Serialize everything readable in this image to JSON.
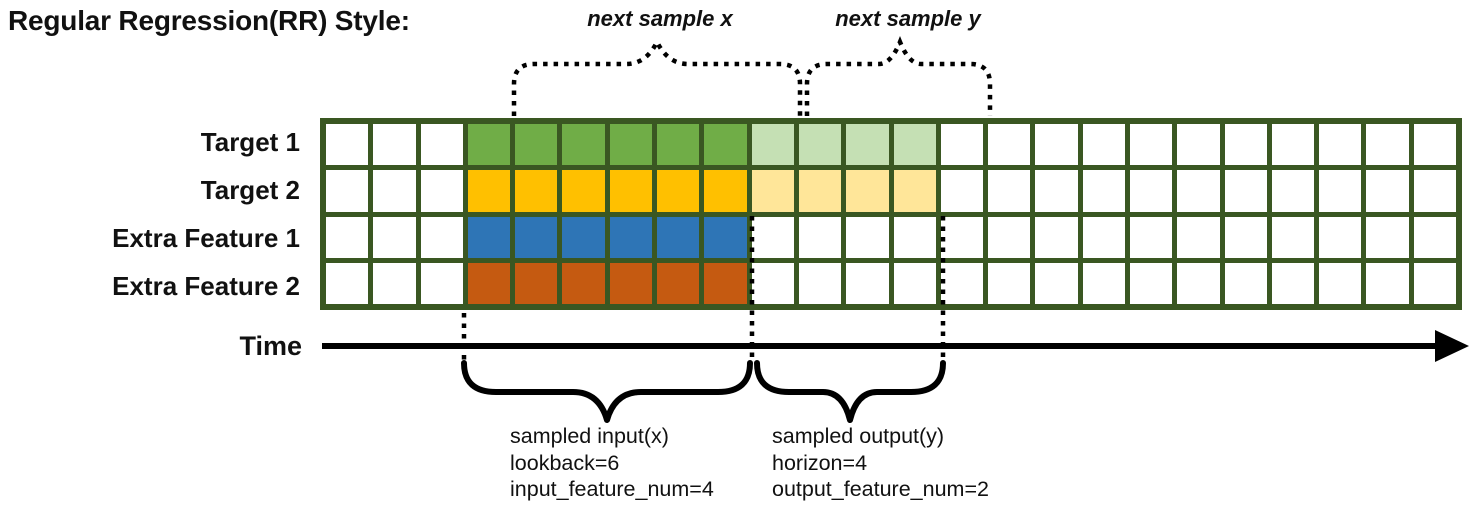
{
  "title": "Regular Regression(RR) Style:",
  "top_annotations": {
    "next_sample_x": "next sample x",
    "next_sample_y": "next sample y"
  },
  "grid": {
    "columns": 24,
    "sample_start_column": 4,
    "lookback": 6,
    "horizon": 4,
    "rows": [
      {
        "label": "Target 1",
        "lookback_color": "#70AD47",
        "horizon_color": "#C5E0B4"
      },
      {
        "label": "Target 2",
        "lookback_color": "#FFC000",
        "horizon_color": "#FFE699"
      },
      {
        "label": "Extra Feature 1",
        "lookback_color": "#2E75B6",
        "horizon_color": null
      },
      {
        "label": "Extra Feature 2",
        "lookback_color": "#C55A11",
        "horizon_color": null
      }
    ]
  },
  "time_axis": {
    "label": "Time"
  },
  "bottom_annotations": {
    "input": {
      "lines": [
        "sampled input(x)",
        "lookback=6",
        "input_feature_num=4"
      ]
    },
    "output": {
      "lines": [
        "sampled output(y)",
        "horizon=4",
        "output_feature_num=2"
      ]
    }
  },
  "colors": {
    "grid_border": "#3A5722",
    "cell_empty": "#FFFFFF",
    "line_black": "#000000"
  }
}
